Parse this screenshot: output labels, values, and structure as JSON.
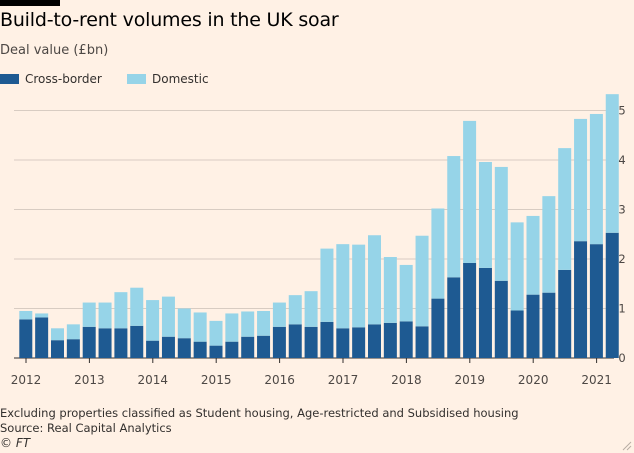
{
  "title": "Build-to-rent volumes in the UK soar",
  "subtitle": "Deal value (£bn)",
  "legend": {
    "cross_border": "Cross-border",
    "domestic": "Domestic"
  },
  "colors": {
    "cross_border": "#1e5a92",
    "domestic": "#96d4e8",
    "grid": "#d8ccc2",
    "baseline": "#33302e",
    "background": "#fff1e5"
  },
  "footnote": "Excluding properties classified as Student housing, Age-restricted and Subsidised housing",
  "source": "Source: Real Capital Analytics",
  "copyright": "© FT",
  "chart_data": {
    "type": "bar",
    "stacked": true,
    "title": "Build-to-rent volumes in the UK soar",
    "ylabel": "Deal value (£bn)",
    "ylim": [
      0,
      5.5
    ],
    "yticks": [
      0,
      1,
      2,
      3,
      4,
      5
    ],
    "y_axis_side": "right",
    "grid": true,
    "legend_position": "top-left",
    "year_labels": [
      "2012",
      "2013",
      "2014",
      "2015",
      "2016",
      "2017",
      "2018",
      "2019",
      "2020",
      "2021"
    ],
    "categories": [
      "2012 Q1",
      "2012 Q2",
      "2012 Q3",
      "2012 Q4",
      "2013 Q1",
      "2013 Q2",
      "2013 Q3",
      "2013 Q4",
      "2014 Q1",
      "2014 Q2",
      "2014 Q3",
      "2014 Q4",
      "2015 Q1",
      "2015 Q2",
      "2015 Q3",
      "2015 Q4",
      "2016 Q1",
      "2016 Q2",
      "2016 Q3",
      "2016 Q4",
      "2017 Q1",
      "2017 Q2",
      "2017 Q3",
      "2017 Q4",
      "2018 Q1",
      "2018 Q2",
      "2018 Q3",
      "2018 Q4",
      "2019 Q1",
      "2019 Q2",
      "2019 Q3",
      "2019 Q4",
      "2020 Q1",
      "2020 Q2",
      "2020 Q3",
      "2020 Q4",
      "2021 Q1",
      "2021 Q2",
      "2021 Q3",
      "2021 Q4"
    ],
    "series": [
      {
        "name": "Cross-border",
        "values": [
          0.78,
          0.82,
          0.36,
          0.38,
          0.63,
          0.6,
          0.6,
          0.65,
          0.35,
          0.43,
          0.4,
          0.33,
          0.25,
          0.33,
          0.43,
          0.45,
          0.63,
          0.68,
          0.63,
          0.73,
          0.6,
          0.62,
          0.68,
          0.71,
          0.74,
          0.64,
          1.2,
          1.63,
          1.92,
          1.82,
          1.56,
          0.96,
          1.28,
          1.32,
          1.78,
          2.36,
          2.3,
          2.53,
          0,
          0
        ]
      },
      {
        "name": "Domestic",
        "values": [
          0.17,
          0.08,
          0.24,
          0.3,
          0.49,
          0.52,
          0.73,
          0.77,
          0.82,
          0.81,
          0.6,
          0.59,
          0.5,
          0.57,
          0.51,
          0.5,
          0.49,
          0.59,
          0.72,
          1.48,
          1.7,
          1.67,
          1.8,
          1.33,
          1.14,
          1.83,
          1.82,
          2.45,
          2.87,
          2.14,
          2.3,
          1.78,
          1.59,
          1.95,
          2.46,
          2.47,
          2.63,
          2.8,
          0,
          0
        ]
      }
    ]
  }
}
